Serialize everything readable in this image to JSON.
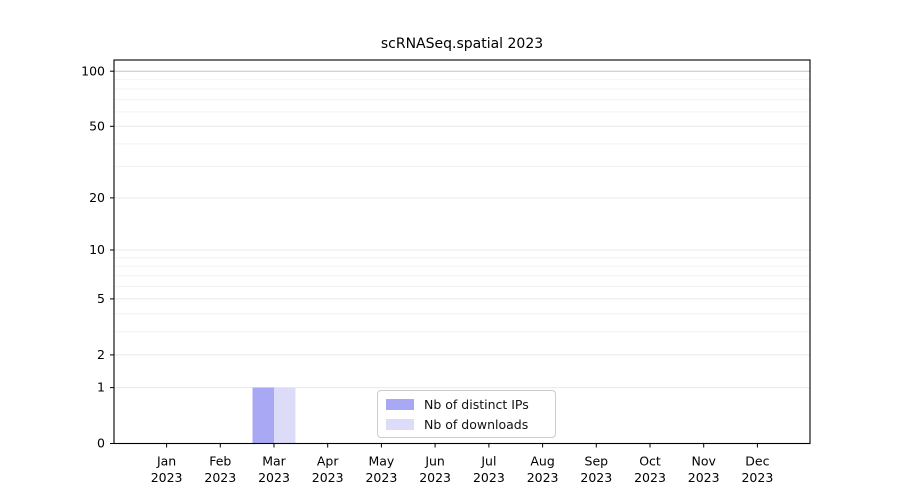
{
  "chart_data": {
    "type": "bar",
    "title": "scRNASeq.spatial 2023",
    "categories": [
      "Jan",
      "Feb",
      "Mar",
      "Apr",
      "May",
      "Jun",
      "Jul",
      "Aug",
      "Sep",
      "Oct",
      "Nov",
      "Dec"
    ],
    "category_year": "2023",
    "series": [
      {
        "name": "Nb of distinct IPs",
        "color": "#a8a8f5",
        "values": [
          0,
          0,
          1,
          0,
          0,
          0,
          0,
          0,
          0,
          0,
          0,
          0
        ]
      },
      {
        "name": "Nb of downloads",
        "color": "#dcdcf8",
        "values": [
          0,
          0,
          1,
          0,
          0,
          0,
          0,
          0,
          0,
          0,
          0,
          0
        ]
      }
    ],
    "yaxis": {
      "scale": "log1p",
      "ylim": [
        0,
        115
      ],
      "major_ticks": [
        0,
        1,
        2,
        5,
        10,
        20,
        50,
        100
      ],
      "minor_ticks": [
        3,
        4,
        6,
        7,
        8,
        9,
        30,
        40,
        60,
        70,
        80,
        90
      ],
      "emphasized_gridline": 100
    },
    "xlabel": "",
    "ylabel": "",
    "grid": "horizontal",
    "legend_position": "lower center",
    "colors": {
      "grid_major": "#e9e9e9",
      "grid_minor": "#f3f3f3",
      "grid_emphasized": "#c3c3c3",
      "spine": "#000000"
    }
  }
}
